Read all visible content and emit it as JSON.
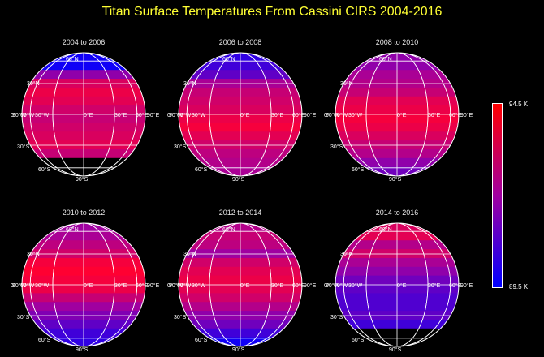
{
  "title": "Titan Surface Temperatures From Cassini CIRS 2004-2016",
  "colorbar": {
    "max_label": "94.5 K",
    "min_label": "89.5 K",
    "color_max": "#ff0000",
    "color_mid": "#a000a0",
    "color_min": "#0000ff"
  },
  "grid_labels": {
    "lat": [
      "60°N",
      "30°N",
      "0°",
      "30°S",
      "60°S",
      "90°S"
    ],
    "lon": [
      "90°W",
      "60°W",
      "30°W",
      "0°E",
      "30°E",
      "60°E",
      "90°E"
    ]
  },
  "panels": [
    {
      "label": "2004 to 2006",
      "bands": [
        0.05,
        0.05,
        0.45,
        0.8,
        0.9,
        0.85,
        0.75,
        0.7,
        0.75,
        0.8,
        0.85,
        0.7,
        0.0,
        0.0
      ]
    },
    {
      "label": "2006 to 2008",
      "bands": [
        0.15,
        0.2,
        0.3,
        0.55,
        0.7,
        0.75,
        0.8,
        0.9,
        0.95,
        0.85,
        0.75,
        0.65,
        0.6,
        0.55
      ]
    },
    {
      "label": "2008 to 2010",
      "bands": [
        0.45,
        0.45,
        0.55,
        0.6,
        0.7,
        0.85,
        0.9,
        0.95,
        0.9,
        0.8,
        0.7,
        0.6,
        0.45,
        0.35
      ]
    },
    {
      "label": "2010 to 2012",
      "bands": [
        0.5,
        0.55,
        0.65,
        0.75,
        0.95,
        1.0,
        0.95,
        0.9,
        0.7,
        0.5,
        0.4,
        0.3,
        0.2,
        0.15
      ]
    },
    {
      "label": "2012 to 2014",
      "bands": [
        0.6,
        0.7,
        0.65,
        0.5,
        0.75,
        0.85,
        0.9,
        0.85,
        0.75,
        0.6,
        0.45,
        0.35,
        0.2,
        0.05
      ]
    },
    {
      "label": "2014 to 2016",
      "bands": [
        0.8,
        0.85,
        0.6,
        0.75,
        0.55,
        0.45,
        0.35,
        0.3,
        0.25,
        0.25,
        0.3,
        0.2,
        0.0,
        0.0
      ]
    }
  ]
}
